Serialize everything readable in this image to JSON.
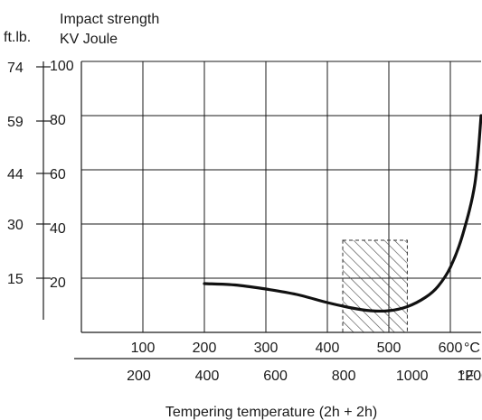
{
  "chart_data": {
    "type": "line",
    "title": "",
    "left_unit_label": "ft.lb.",
    "ylabel_line1": "Impact strength",
    "ylabel_line2": "KV Joule",
    "xlabel": "Tempering temperature (2h + 2h)",
    "y_joule": {
      "lim": [
        0,
        100
      ],
      "ticks": [
        20,
        40,
        60,
        80,
        100
      ]
    },
    "y_ftlb": {
      "ticks": [
        15,
        30,
        44,
        59,
        74
      ]
    },
    "x_celsius": {
      "lim": [
        0,
        650
      ],
      "ticks": [
        100,
        200,
        300,
        400,
        500,
        600
      ],
      "unit": "°C"
    },
    "x_fahrenheit": {
      "ticks": [
        200,
        400,
        600,
        800,
        1000,
        1200
      ],
      "unit": "°F"
    },
    "grid": true,
    "series": [
      {
        "x": [
          200,
          250,
          300,
          350,
          400,
          440,
          470,
          500,
          530,
          560,
          580,
          600,
          620,
          640,
          650
        ],
        "y": [
          18,
          17.5,
          16,
          14,
          11,
          9,
          8,
          8,
          9.5,
          13,
          17,
          24,
          36,
          55,
          80
        ]
      }
    ],
    "shaded_region": {
      "x": [
        425,
        530
      ],
      "y": [
        0,
        34
      ]
    }
  }
}
